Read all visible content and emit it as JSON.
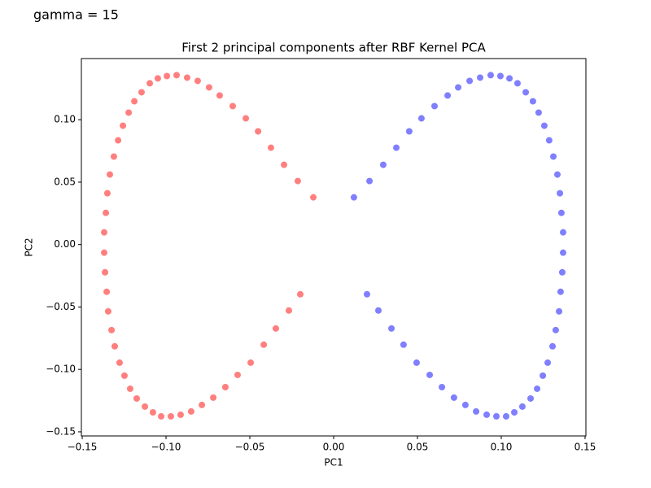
{
  "chart_data": {
    "type": "scatter",
    "annotation": "gamma = 15",
    "title": "First 2 principal components after RBF Kernel PCA",
    "xlabel": "PC1",
    "ylabel": "PC2",
    "xlim": [
      -0.1505,
      0.1505
    ],
    "ylim": [
      -0.1533,
      0.149
    ],
    "xticks": [
      {
        "value": -0.15,
        "label": "−0.15"
      },
      {
        "value": -0.1,
        "label": "−0.10"
      },
      {
        "value": -0.05,
        "label": "−0.05"
      },
      {
        "value": 0,
        "label": "0.00"
      },
      {
        "value": 0.05,
        "label": "0.05"
      },
      {
        "value": 0.1,
        "label": "0.10"
      },
      {
        "value": 0.15,
        "label": "0.15"
      }
    ],
    "yticks": [
      {
        "value": -0.15,
        "label": "−0.15"
      },
      {
        "value": -0.1,
        "label": "−0.10"
      },
      {
        "value": -0.05,
        "label": "−0.05"
      },
      {
        "value": 0,
        "label": "0.00"
      },
      {
        "value": 0.05,
        "label": "0.05"
      },
      {
        "value": 0.1,
        "label": "0.10"
      }
    ],
    "alpha": 0.5,
    "series": [
      {
        "color": "#ff0000",
        "x": [
          -0.0121,
          -0.0214,
          -0.0296,
          -0.0374,
          -0.0451,
          -0.0524,
          -0.0602,
          -0.068,
          -0.0743,
          -0.0811,
          -0.0874,
          -0.0937,
          -0.0995,
          -0.1049,
          -0.1097,
          -0.1146,
          -0.1189,
          -0.1223,
          -0.1257,
          -0.1286,
          -0.1311,
          -0.1335,
          -0.135,
          -0.1359,
          -0.1369,
          -0.1369,
          -0.1364,
          -0.1354,
          -0.1345,
          -0.1325,
          -0.1306,
          -0.1277,
          -0.1248,
          -0.1214,
          -0.1175,
          -0.1126,
          -0.1078,
          -0.1029,
          -0.0971,
          -0.0913,
          -0.085,
          -0.0786,
          -0.0718,
          -0.0646,
          -0.0573,
          -0.0495,
          -0.0417,
          -0.0345,
          -0.0267,
          -0.0199
        ],
        "y": [
          0.0378,
          0.0509,
          0.0639,
          0.0776,
          0.0907,
          0.1011,
          0.1109,
          0.1194,
          0.1259,
          0.1311,
          0.1337,
          0.1357,
          0.135,
          0.1331,
          0.1292,
          0.122,
          0.1148,
          0.1057,
          0.0952,
          0.0835,
          0.0705,
          0.0561,
          0.0411,
          0.0254,
          0.0098,
          -0.0065,
          -0.0222,
          -0.0378,
          -0.0535,
          -0.0685,
          -0.0815,
          -0.0946,
          -0.105,
          -0.1155,
          -0.1233,
          -0.1298,
          -0.1344,
          -0.1376,
          -0.1376,
          -0.1363,
          -0.1337,
          -0.1285,
          -0.1226,
          -0.1142,
          -0.1044,
          -0.0946,
          -0.0802,
          -0.0672,
          -0.0528,
          -0.0398
        ]
      },
      {
        "color": "#0000ff",
        "x": [
          0.0121,
          0.0214,
          0.0296,
          0.0374,
          0.0451,
          0.0524,
          0.0602,
          0.068,
          0.0743,
          0.0811,
          0.0874,
          0.0937,
          0.0995,
          0.1049,
          0.1097,
          0.1146,
          0.1189,
          0.1223,
          0.1257,
          0.1286,
          0.1311,
          0.1335,
          0.135,
          0.1359,
          0.1369,
          0.1369,
          0.1364,
          0.1354,
          0.1345,
          0.1325,
          0.1306,
          0.1277,
          0.1248,
          0.1214,
          0.1175,
          0.1126,
          0.1078,
          0.1029,
          0.0971,
          0.0913,
          0.085,
          0.0786,
          0.0718,
          0.0646,
          0.0573,
          0.0495,
          0.0417,
          0.0345,
          0.0267,
          0.0199
        ],
        "y": [
          0.0378,
          0.0509,
          0.0639,
          0.0776,
          0.0907,
          0.1011,
          0.1109,
          0.1194,
          0.1259,
          0.1311,
          0.1337,
          0.1357,
          0.135,
          0.1331,
          0.1292,
          0.122,
          0.1148,
          0.1057,
          0.0952,
          0.0835,
          0.0705,
          0.0561,
          0.0411,
          0.0254,
          0.0098,
          -0.0065,
          -0.0222,
          -0.0378,
          -0.0535,
          -0.0685,
          -0.0815,
          -0.0946,
          -0.105,
          -0.1155,
          -0.1233,
          -0.1298,
          -0.1344,
          -0.1376,
          -0.1376,
          -0.1363,
          -0.1337,
          -0.1285,
          -0.1226,
          -0.1142,
          -0.1044,
          -0.0946,
          -0.0802,
          -0.0672,
          -0.0528,
          -0.0398
        ]
      }
    ]
  }
}
